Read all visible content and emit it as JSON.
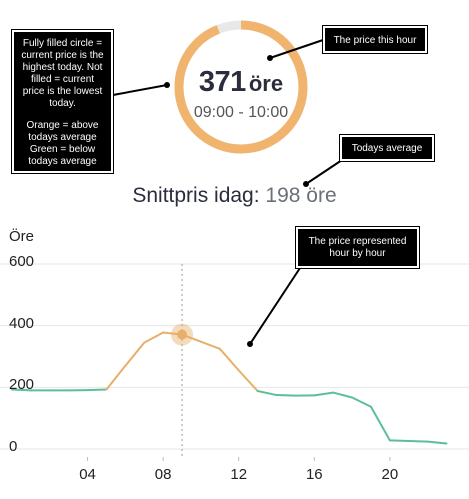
{
  "gauge": {
    "price_value": "371",
    "price_unit": "öre",
    "hour_range": "09:00 - 10:00",
    "fill_fraction": 0.94,
    "fill_color": "#f0b46e",
    "track_color": "#e8e8e8"
  },
  "average": {
    "label": "Snittpris idag:",
    "value": "198 öre"
  },
  "annotations": {
    "legend": [
      "Fully filled circle = current price is the highest today. Not filled = current price is the lowest today.",
      "Orange = above todays average Green = below todays average"
    ],
    "this_hour": "The price this hour",
    "todays_average": "Todays average",
    "hour_by_hour": "The price represented hour by hour"
  },
  "chart_data": {
    "type": "line",
    "ylabel": "Öre",
    "ylim": [
      0,
      600
    ],
    "xlim": [
      0,
      23.5
    ],
    "y_ticks": [
      "600",
      "400",
      "200",
      "0"
    ],
    "x_ticks": [
      "04",
      "08",
      "12",
      "16",
      "20"
    ],
    "grid": true,
    "average": 198,
    "current_hour": 9,
    "current_value": 371,
    "above_color": "#e6b06a",
    "below_color": "#5cbf98",
    "series": [
      {
        "x": [
          0,
          1,
          2,
          3,
          4,
          5,
          6,
          7,
          8,
          9,
          10,
          11,
          12,
          13,
          14,
          15,
          16,
          17,
          18,
          19,
          20,
          21,
          22,
          23
        ],
        "values": [
          193,
          190,
          190,
          190,
          191,
          193,
          270,
          345,
          378,
          371,
          348,
          325,
          255,
          188,
          175,
          173,
          174,
          183,
          167,
          137,
          28,
          26,
          24,
          18
        ]
      }
    ]
  }
}
